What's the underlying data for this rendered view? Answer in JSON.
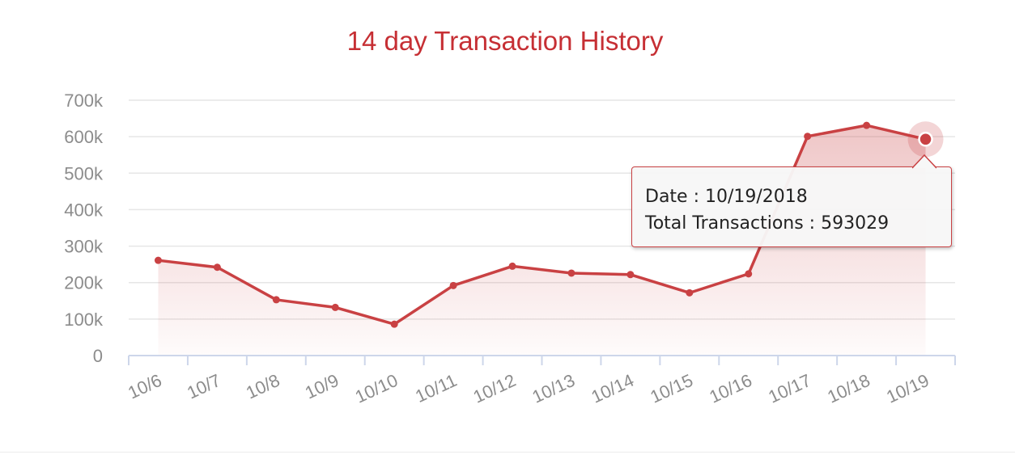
{
  "chart_data": {
    "type": "area",
    "title": "14 day Transaction History",
    "xlabel": "",
    "ylabel": "",
    "categories": [
      "10/6",
      "10/7",
      "10/8",
      "10/9",
      "10/10",
      "10/11",
      "10/12",
      "10/13",
      "10/14",
      "10/15",
      "10/16",
      "10/17",
      "10/18",
      "10/19"
    ],
    "values": [
      261000,
      242000,
      153000,
      132000,
      86000,
      192000,
      245000,
      226000,
      222000,
      172000,
      224000,
      601000,
      631000,
      593029
    ],
    "ylim": [
      0,
      700000
    ],
    "y_ticks": [
      {
        "value": 0,
        "label": "0"
      },
      {
        "value": 100000,
        "label": "100k"
      },
      {
        "value": 200000,
        "label": "200k"
      },
      {
        "value": 300000,
        "label": "300k"
      },
      {
        "value": 400000,
        "label": "400k"
      },
      {
        "value": 500000,
        "label": "500k"
      },
      {
        "value": 600000,
        "label": "600k"
      },
      {
        "value": 700000,
        "label": "700k"
      }
    ],
    "grid": true,
    "line_color": "#c94143",
    "highlight_index": 13
  },
  "tooltip": {
    "date_line": "Date : 10/19/2018",
    "total_line": "Total Transactions : 593029"
  }
}
